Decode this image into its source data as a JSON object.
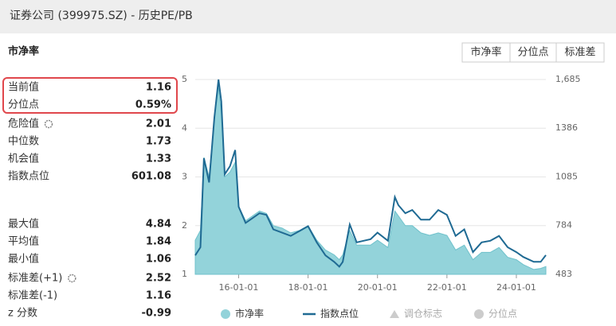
{
  "header": {
    "title": "证券公司 (399975.SZ) - 历史PE/PB"
  },
  "panel": {
    "title": "市净率",
    "buttons": [
      "市净率",
      "分位点",
      "标准差"
    ],
    "stats": [
      {
        "label": "当前值",
        "value": "1.16"
      },
      {
        "label": "分位点",
        "value": "0.59%"
      },
      {
        "label": "危险值",
        "value": "2.01"
      },
      {
        "label": "中位数",
        "value": "1.73"
      },
      {
        "label": "机会值",
        "value": "1.33"
      },
      {
        "label": "指数点位",
        "value": "601.08"
      },
      {
        "label": "最大值",
        "value": "4.84"
      },
      {
        "label": "平均值",
        "value": "1.84"
      },
      {
        "label": "最小值",
        "value": "1.06"
      },
      {
        "label": "标准差(+1)",
        "value": "2.52"
      },
      {
        "label": "标准差(-1)",
        "value": "1.16"
      },
      {
        "label": "z 分数",
        "value": "-0.99"
      }
    ]
  },
  "chart_data": {
    "type": "line",
    "x": [
      2014.75,
      2014.9,
      2015.0,
      2015.15,
      2015.3,
      2015.42,
      2015.5,
      2015.6,
      2015.75,
      2015.9,
      2016.0,
      2016.2,
      2016.4,
      2016.6,
      2016.8,
      2017.0,
      2017.25,
      2017.5,
      2017.75,
      2018.0,
      2018.25,
      2018.5,
      2018.75,
      2018.9,
      2019.0,
      2019.2,
      2019.4,
      2019.6,
      2019.8,
      2020.0,
      2020.3,
      2020.5,
      2020.6,
      2020.8,
      2021.0,
      2021.25,
      2021.5,
      2021.75,
      2022.0,
      2022.25,
      2022.5,
      2022.75,
      2023.0,
      2023.25,
      2023.5,
      2023.75,
      2024.0,
      2024.2,
      2024.5,
      2024.7,
      2024.85
    ],
    "series": [
      {
        "name": "市净率",
        "color": "#93d3da",
        "values": [
          1.7,
          1.9,
          3.4,
          3.0,
          4.2,
          4.84,
          4.3,
          3.0,
          3.1,
          3.3,
          2.4,
          2.1,
          2.2,
          2.3,
          2.25,
          2.0,
          1.95,
          1.85,
          1.9,
          2.0,
          1.7,
          1.5,
          1.4,
          1.3,
          1.4,
          1.9,
          1.6,
          1.6,
          1.6,
          1.7,
          1.55,
          2.3,
          2.2,
          2.0,
          2.0,
          1.85,
          1.8,
          1.85,
          1.8,
          1.5,
          1.6,
          1.3,
          1.45,
          1.45,
          1.55,
          1.35,
          1.3,
          1.2,
          1.1,
          1.12,
          1.16
        ]
      },
      {
        "name": "指数点位",
        "color": "#1f6a93",
        "axis": "y2",
        "values": [
          600,
          650,
          1200,
          1050,
          1450,
          1685,
          1550,
          1100,
          1150,
          1250,
          900,
          800,
          830,
          860,
          850,
          760,
          740,
          720,
          750,
          780,
          680,
          600,
          560,
          530,
          560,
          790,
          680,
          690,
          700,
          740,
          690,
          960,
          910,
          860,
          880,
          820,
          820,
          880,
          850,
          720,
          760,
          620,
          680,
          690,
          720,
          650,
          620,
          590,
          560,
          560,
          601.08
        ]
      }
    ],
    "legend_extra": [
      "调仓标志",
      "分位点"
    ],
    "xlim": [
      2014.75,
      2024.85
    ],
    "xticks": [
      {
        "value": 2016,
        "label": "16-01-01"
      },
      {
        "value": 2018,
        "label": "18-01-01"
      },
      {
        "value": 2020,
        "label": "20-01-01"
      },
      {
        "value": 2022,
        "label": "22-01-01"
      },
      {
        "value": 2024,
        "label": "24-01-01"
      }
    ],
    "ylim": [
      1,
      5
    ],
    "yticks": [
      1,
      2,
      3,
      4,
      5
    ],
    "y2lim": [
      483,
      1685
    ],
    "y2ticks": [
      483,
      784,
      1085,
      1386,
      {
        "value": 1685,
        "label": "1,685"
      }
    ],
    "grid": true
  }
}
